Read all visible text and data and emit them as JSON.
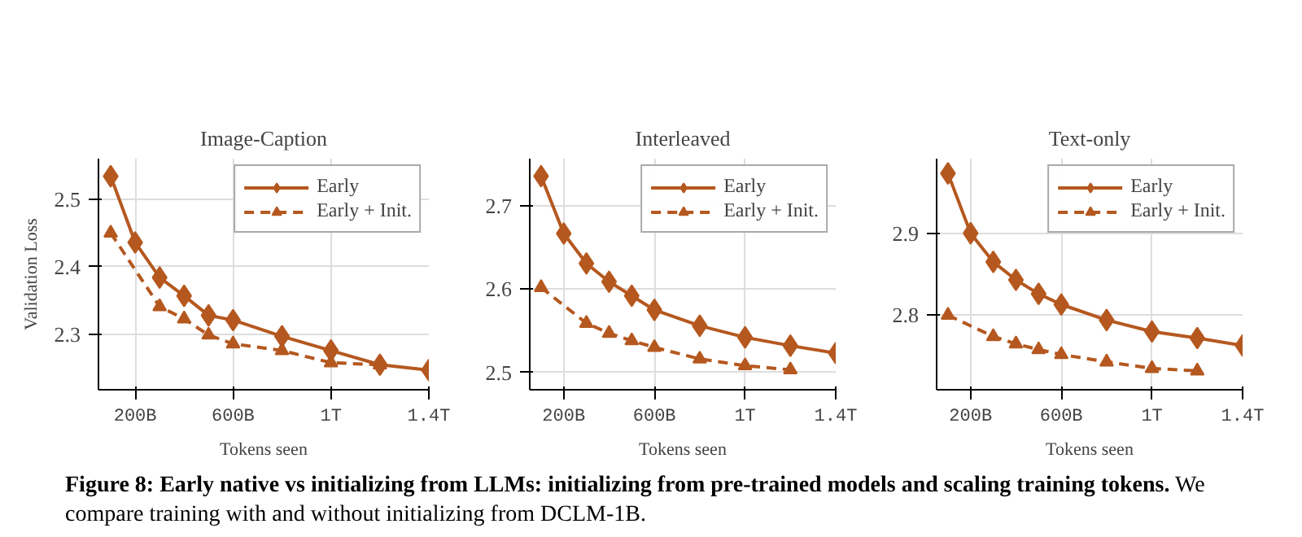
{
  "chart_data": [
    {
      "type": "line",
      "title": "Image-Caption",
      "xlabel": "Tokens seen",
      "ylabel": "Validation Loss",
      "xlim": [
        50000000000,
        1400000000000
      ],
      "xticks": [
        {
          "value": 200000000000,
          "label": "200B"
        },
        {
          "value": 600000000000,
          "label": "600B"
        },
        {
          "value": 1000000000000,
          "label": "1T"
        },
        {
          "value": 1400000000000,
          "label": "1.4T"
        }
      ],
      "ylim": [
        2.218,
        2.56
      ],
      "yticks": [
        2.3,
        2.4,
        2.5
      ],
      "grid": true,
      "legend": "top right",
      "series": [
        {
          "name": "Early",
          "color": "#b5581f",
          "marker": "diamond",
          "line_style": "solid",
          "x": [
            100000000000,
            200000000000,
            300000000000,
            400000000000,
            500000000000,
            600000000000,
            800000000000,
            1000000000000,
            1200000000000,
            1400000000000
          ],
          "values": [
            2.534,
            2.436,
            2.384,
            2.357,
            2.328,
            2.321,
            2.297,
            2.276,
            2.255,
            2.247
          ]
        },
        {
          "name": "Early + Init.",
          "color": "#b5581f",
          "marker": "triangle",
          "line_style": "dashed",
          "x": [
            100000000000,
            300000000000,
            400000000000,
            500000000000,
            600000000000,
            800000000000,
            1000000000000,
            1200000000000
          ],
          "values": [
            2.45,
            2.341,
            2.323,
            2.299,
            2.286,
            2.276,
            2.258,
            2.255
          ]
        }
      ],
      "annotations": [
        "Figure 8: Early native vs initializing from LLMs: initializing from pre-trained models and scaling training tokens.",
        "We compare training with and without initializing from DCLM-1B."
      ]
    },
    {
      "type": "line",
      "title": "Interleaved",
      "xlabel": "Tokens seen",
      "xlim": [
        50000000000,
        1400000000000
      ],
      "xticks": [
        {
          "value": 200000000000,
          "label": "200B"
        },
        {
          "value": 600000000000,
          "label": "600B"
        },
        {
          "value": 1000000000000,
          "label": "1T"
        },
        {
          "value": 1400000000000,
          "label": "1.4T"
        }
      ],
      "ylim": [
        2.479,
        2.757
      ],
      "yticks": [
        2.5,
        2.6,
        2.7
      ],
      "grid": true,
      "legend": "top right",
      "series": [
        {
          "name": "Early",
          "color": "#b5581f",
          "marker": "diamond",
          "line_style": "solid",
          "x": [
            100000000000,
            200000000000,
            300000000000,
            400000000000,
            500000000000,
            600000000000,
            800000000000,
            1000000000000,
            1200000000000,
            1400000000000
          ],
          "values": [
            2.736,
            2.667,
            2.631,
            2.609,
            2.592,
            2.575,
            2.556,
            2.542,
            2.532,
            2.523
          ]
        },
        {
          "name": "Early + Init.",
          "color": "#b5581f",
          "marker": "triangle",
          "line_style": "dashed",
          "x": [
            100000000000,
            300000000000,
            400000000000,
            500000000000,
            600000000000,
            800000000000,
            1000000000000,
            1200000000000
          ],
          "values": [
            2.602,
            2.559,
            2.547,
            2.538,
            2.53,
            2.516,
            2.508,
            2.503
          ]
        }
      ]
    },
    {
      "type": "line",
      "title": "Text-only",
      "xlabel": "Tokens seen",
      "xlim": [
        50000000000,
        1400000000000
      ],
      "xticks": [
        {
          "value": 200000000000,
          "label": "200B"
        },
        {
          "value": 600000000000,
          "label": "600B"
        },
        {
          "value": 1000000000000,
          "label": "1T"
        },
        {
          "value": 1400000000000,
          "label": "1.4T"
        }
      ],
      "ylim": [
        2.709,
        2.991
      ],
      "yticks": [
        2.8,
        2.9
      ],
      "grid": true,
      "legend": "top right",
      "series": [
        {
          "name": "Early",
          "color": "#b5581f",
          "marker": "diamond",
          "line_style": "solid",
          "x": [
            100000000000,
            200000000000,
            300000000000,
            400000000000,
            500000000000,
            600000000000,
            800000000000,
            1000000000000,
            1200000000000,
            1400000000000
          ],
          "values": [
            2.973,
            2.9,
            2.865,
            2.843,
            2.826,
            2.813,
            2.794,
            2.78,
            2.772,
            2.763
          ]
        },
        {
          "name": "Early + Init.",
          "color": "#b5581f",
          "marker": "triangle",
          "line_style": "dashed",
          "x": [
            100000000000,
            300000000000,
            400000000000,
            500000000000,
            600000000000,
            800000000000,
            1000000000000,
            1200000000000
          ],
          "values": [
            2.8,
            2.774,
            2.765,
            2.758,
            2.752,
            2.743,
            2.735,
            2.732
          ]
        }
      ]
    }
  ]
}
